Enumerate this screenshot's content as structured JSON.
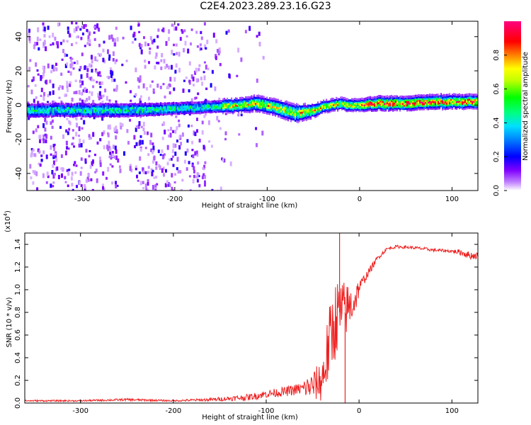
{
  "title": "C2E4.2023.289.23.16.G23",
  "colors": {
    "snr_line": "#ee2020",
    "axis": "#000000",
    "background": "#ffffff"
  },
  "chart_data": [
    {
      "type": "heatmap",
      "name": "spectrogram",
      "title": "",
      "xlabel": "Height of straight line (km)",
      "ylabel": "Frequency (Hz)",
      "xlim": [
        -360,
        128
      ],
      "ylim": [
        -50,
        49
      ],
      "xticks": [
        -300,
        -200,
        -100,
        0,
        100
      ],
      "xtick_labels": [
        "-300",
        "-200",
        "-100",
        "0",
        "100"
      ],
      "yticks": [
        -40,
        -20,
        0,
        20,
        40
      ],
      "ytick_labels": [
        "-40",
        "-20",
        "0",
        "20",
        "40"
      ],
      "colorbar": {
        "label": "Normalized spectral amplitude",
        "range": [
          0,
          1
        ],
        "ticks": [
          0.0,
          0.2,
          0.4,
          0.6,
          0.8
        ],
        "tick_labels": [
          "0.0",
          "0.2",
          "0.4",
          "0.6",
          "0.8"
        ],
        "stops": [
          {
            "v": 0.0,
            "color": "#ffffff"
          },
          {
            "v": 0.05,
            "color": "#c080ff"
          },
          {
            "v": 0.12,
            "color": "#8000ff"
          },
          {
            "v": 0.2,
            "color": "#0000ff"
          },
          {
            "v": 0.3,
            "color": "#0080ff"
          },
          {
            "v": 0.38,
            "color": "#00e0ff"
          },
          {
            "v": 0.46,
            "color": "#00ff80"
          },
          {
            "v": 0.55,
            "color": "#00ff00"
          },
          {
            "v": 0.65,
            "color": "#c0ff00"
          },
          {
            "v": 0.72,
            "color": "#ffff00"
          },
          {
            "v": 0.8,
            "color": "#ff8000"
          },
          {
            "v": 0.88,
            "color": "#ff0000"
          },
          {
            "v": 1.0,
            "color": "#ff0080"
          }
        ]
      },
      "noise_regions": [
        {
          "x_from": -360,
          "x_to": -262,
          "density": 0.55
        },
        {
          "x_from": -262,
          "x_to": -245,
          "density": 0.15
        },
        {
          "x_from": -245,
          "x_to": -165,
          "density": 0.45
        },
        {
          "x_from": -165,
          "x_to": -145,
          "density": 0.18
        },
        {
          "x_from": -145,
          "x_to": -105,
          "density": 0.06
        }
      ],
      "ridge": {
        "x": [
          -360,
          -300,
          -250,
          -200,
          -160,
          -130,
          -110,
          -95,
          -80,
          -70,
          -60,
          -50,
          -40,
          -30,
          -20,
          -10,
          0,
          20,
          50,
          80,
          100,
          128
        ],
        "freq": [
          -3,
          -3,
          -3,
          -2,
          -1,
          0,
          1,
          -1,
          -3,
          -5,
          -4,
          -3,
          -1,
          0,
          1,
          0,
          0,
          1,
          1,
          2,
          2,
          2
        ],
        "width_hz": [
          4,
          4,
          4,
          3.5,
          3.5,
          3.5,
          4,
          4,
          4.5,
          4.5,
          4,
          3.5,
          3,
          3,
          3,
          3,
          3,
          3.5,
          3.5,
          3.5,
          3.5,
          3.5
        ]
      }
    },
    {
      "type": "line",
      "name": "snr",
      "title": "",
      "xlabel": "Height of straight line (km)",
      "ylabel": "SNR (10 * v/v)",
      "scale_label": "(x10",
      "scale_exp": "4",
      "scale_close": ")",
      "xlim": [
        -360,
        128
      ],
      "ylim": [
        0,
        1.5
      ],
      "xticks": [
        -300,
        -200,
        -100,
        0,
        100
      ],
      "xtick_labels": [
        "-300",
        "-200",
        "-100",
        "0",
        "100"
      ],
      "yticks": [
        0.0,
        0.2,
        0.4,
        0.6,
        0.8,
        1.0,
        1.2,
        1.4
      ],
      "ytick_labels": [
        "0.0",
        "0.2",
        "0.4",
        "0.6",
        "0.8",
        "1.0",
        "1.2",
        "1.4"
      ],
      "series": [
        {
          "name": "SNR",
          "x": [
            -360,
            -300,
            -250,
            -200,
            -160,
            -120,
            -100,
            -80,
            -60,
            -50,
            -40,
            -35,
            -30,
            -25,
            -20,
            -15,
            -10,
            -5,
            0,
            10,
            20,
            30,
            40,
            60,
            80,
            100,
            110,
            120,
            128
          ],
          "y": [
            0.02,
            0.02,
            0.03,
            0.02,
            0.03,
            0.05,
            0.08,
            0.1,
            0.13,
            0.15,
            0.2,
            0.4,
            0.6,
            0.75,
            0.8,
            0.82,
            0.85,
            0.9,
            1.02,
            1.15,
            1.28,
            1.36,
            1.38,
            1.37,
            1.35,
            1.34,
            1.33,
            1.3,
            1.3
          ],
          "jitter": [
            0.01,
            0.01,
            0.015,
            0.01,
            0.02,
            0.04,
            0.05,
            0.06,
            0.08,
            0.12,
            0.2,
            0.3,
            0.35,
            0.35,
            0.3,
            0.25,
            0.2,
            0.15,
            0.08,
            0.05,
            0.03,
            0.02,
            0.02,
            0.02,
            0.02,
            0.02,
            0.04,
            0.05,
            0.04
          ]
        }
      ],
      "spikes": [
        {
          "x": -21,
          "y": 1.5
        },
        {
          "x": -15,
          "y": 0.0
        }
      ]
    }
  ]
}
